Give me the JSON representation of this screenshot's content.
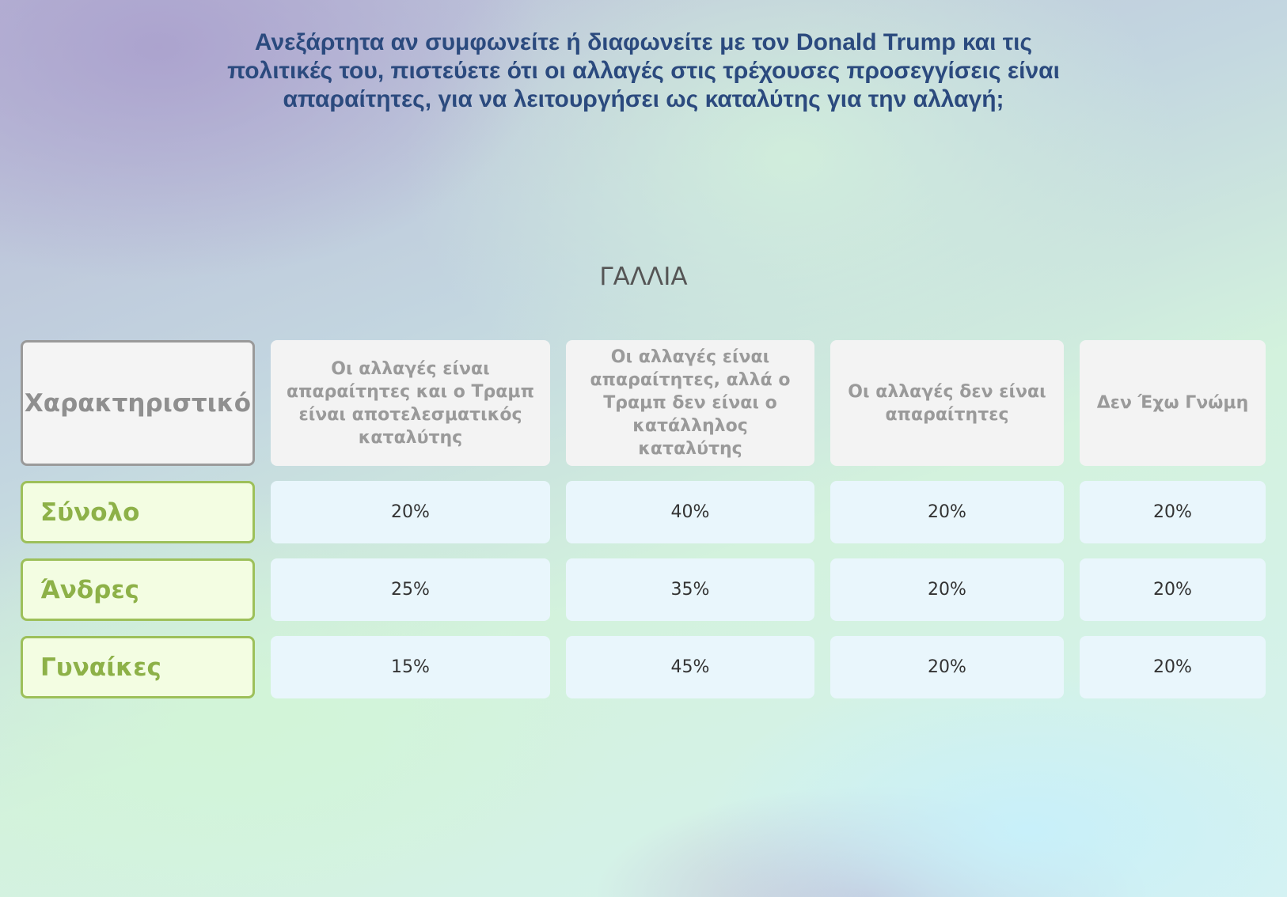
{
  "title": "Ανεξάρτητα αν συμφωνείτε ή διαφωνείτε με τον Donald Trump και τις πολιτικές του, πιστεύετε ότι οι αλλαγές στις τρέχουσες προσεγγίσεις είναι απαραίτητες, για να λειτουργήσει ως καταλύτης για την αλλαγή;",
  "subtitle": "ΓΑΛΛΙΑ",
  "table": {
    "header": [
      "Χαρακτηριστικό",
      "Οι αλλαγές είναι απαραίτητες και ο Τραμπ είναι αποτελεσματικός καταλύτης",
      "Οι αλλαγές είναι απαραίτητες, αλλά ο Τραμπ δεν είναι ο κατάλληλος καταλύτης",
      "Οι αλλαγές δεν είναι απαραίτητες",
      "Δεν Έχω Γνώμη"
    ],
    "rows": [
      {
        "label": "Σύνολο",
        "cells": [
          "20%",
          "40%",
          "20%",
          "20%"
        ]
      },
      {
        "label": "Άνδρες",
        "cells": [
          "25%",
          "35%",
          "20%",
          "20%"
        ]
      },
      {
        "label": "Γυναίκες",
        "cells": [
          "15%",
          "45%",
          "20%",
          "20%"
        ]
      }
    ]
  }
}
